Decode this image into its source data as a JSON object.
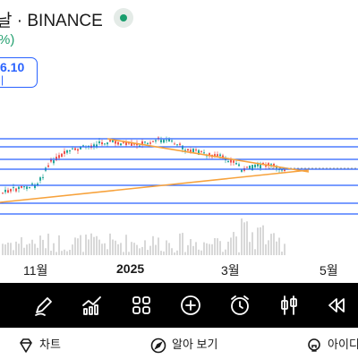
{
  "header": {
    "exchange_label": "날 · BINANCE",
    "change_percent": "%)",
    "price_value": "6.10",
    "price_sub": "|",
    "live_status": "live"
  },
  "chart": {
    "x_labels": [
      "11월",
      "2025",
      "3월",
      "5월"
    ],
    "colors": {
      "horizontal_lines": "#2962ff",
      "descending_trendline": "#f7a23c",
      "ascending_trendline": "#f7a23c",
      "candle_up": "#26a69a",
      "candle_down": "#ef5350"
    }
  },
  "toolbar": {
    "icons": [
      "pen-icon",
      "chart-line-icon",
      "grid-icon",
      "plus-circle-icon",
      "alarm-clock-icon",
      "candlestick-icon",
      "rewind-icon"
    ]
  },
  "bottom_bar": {
    "chart_label": "차트",
    "explore_label": "알아 보기",
    "ideas_label": "아이디"
  }
}
